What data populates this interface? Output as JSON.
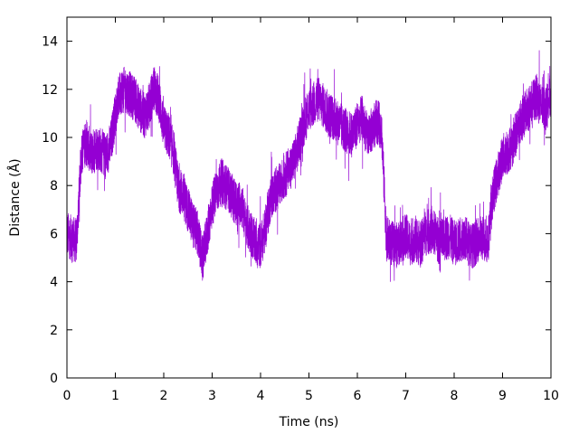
{
  "chart_data": {
    "type": "line",
    "title": "",
    "xlabel": "Time (ns)",
    "ylabel": "Distance (Å)",
    "xlim": [
      0,
      10
    ],
    "ylim": [
      0,
      15
    ],
    "x_ticks": [
      0,
      1,
      2,
      3,
      4,
      5,
      6,
      7,
      8,
      9,
      10
    ],
    "y_ticks": [
      0,
      2,
      4,
      6,
      8,
      10,
      12,
      14
    ],
    "grid": false,
    "legend": "none",
    "series": [
      {
        "color": "#9400d3",
        "x": [
          0.0,
          0.1,
          0.2,
          0.3,
          0.4,
          0.5,
          0.6,
          0.7,
          0.8,
          0.9,
          1.0,
          1.1,
          1.2,
          1.3,
          1.4,
          1.5,
          1.6,
          1.7,
          1.8,
          1.9,
          2.0,
          2.1,
          2.2,
          2.3,
          2.4,
          2.5,
          2.6,
          2.7,
          2.8,
          2.9,
          3.0,
          3.1,
          3.2,
          3.3,
          3.4,
          3.5,
          3.6,
          3.7,
          3.8,
          3.9,
          4.0,
          4.1,
          4.2,
          4.3,
          4.4,
          4.5,
          4.6,
          4.7,
          4.8,
          4.9,
          5.0,
          5.1,
          5.2,
          5.3,
          5.4,
          5.5,
          5.6,
          5.7,
          5.8,
          5.9,
          6.0,
          6.1,
          6.2,
          6.3,
          6.4,
          6.5,
          6.6,
          6.7,
          6.8,
          6.9,
          7.0,
          7.1,
          7.2,
          7.3,
          7.4,
          7.5,
          7.6,
          7.7,
          7.8,
          7.9,
          8.0,
          8.1,
          8.2,
          8.3,
          8.4,
          8.5,
          8.6,
          8.7,
          8.8,
          8.9,
          9.0,
          9.1,
          9.2,
          9.3,
          9.4,
          9.5,
          9.6,
          9.7,
          9.8,
          9.9,
          10.0
        ],
        "y": [
          6.0,
          5.8,
          5.7,
          9.4,
          9.8,
          9.3,
          9.6,
          9.5,
          9.2,
          9.7,
          11.0,
          11.9,
          12.0,
          11.8,
          11.6,
          11.2,
          10.9,
          11.3,
          12.1,
          11.6,
          10.4,
          10.1,
          9.4,
          7.9,
          7.6,
          7.0,
          6.4,
          6.0,
          4.9,
          6.0,
          7.2,
          7.8,
          8.2,
          7.9,
          7.6,
          7.2,
          7.3,
          6.4,
          6.0,
          5.6,
          5.5,
          6.2,
          7.4,
          7.8,
          8.0,
          8.4,
          8.7,
          9.1,
          9.8,
          10.6,
          11.2,
          11.4,
          11.6,
          11.3,
          11.0,
          10.8,
          10.6,
          10.4,
          10.2,
          10.1,
          10.6,
          10.8,
          10.1,
          10.3,
          10.7,
          10.4,
          5.8,
          5.6,
          5.5,
          5.7,
          5.9,
          5.6,
          5.8,
          5.5,
          6.0,
          6.1,
          6.0,
          5.6,
          5.8,
          5.9,
          5.6,
          5.7,
          5.9,
          5.6,
          5.5,
          5.8,
          5.8,
          5.7,
          7.6,
          8.4,
          9.2,
          9.4,
          9.7,
          10.3,
          10.8,
          11.1,
          11.4,
          11.7,
          11.3,
          11.2,
          11.8
        ]
      }
    ]
  }
}
